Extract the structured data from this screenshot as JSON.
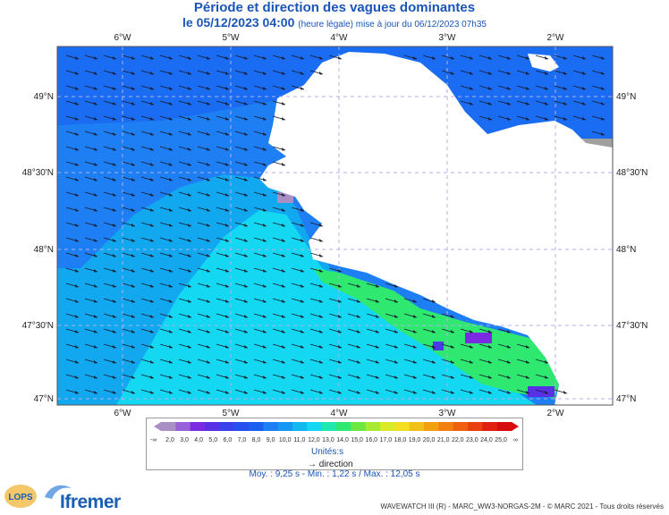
{
  "header": {
    "title": "Période et direction des vagues dominantes",
    "date": "le 05/12/2023 04:00",
    "subtitle": "(heure légale) mise à jour du 06/12/2023 07h35"
  },
  "map": {
    "lon_labels": [
      "6°W",
      "5°W",
      "4°W",
      "3°W",
      "2°W"
    ],
    "lat_labels": [
      "49°N",
      "48°30'N",
      "48°N",
      "47°30'N",
      "47°N"
    ],
    "colors": {
      "land": "#ffffff",
      "deep_blue": "#1a5ff0",
      "blue": "#1e7ff5",
      "light_blue": "#12a8f0",
      "cyan": "#14d8f2",
      "green": "#2ee870",
      "purple": "#7a2ae0",
      "gray": "#a0a0a0"
    }
  },
  "legend": {
    "ticks": [
      "2,0",
      "3,0",
      "4,0",
      "5,0",
      "6,0",
      "7,0",
      "8,0",
      "9,0",
      "10,0",
      "11,0",
      "12,0",
      "13,0",
      "14,0",
      "15,0",
      "16,0",
      "17,0",
      "18,0",
      "19,0",
      "20,0",
      "21,0",
      "22,0",
      "23,0",
      "24,0",
      "25,0"
    ],
    "colors": [
      "#a98fc4",
      "#9a62d8",
      "#7a2ae0",
      "#5a30e6",
      "#3a40ec",
      "#2650f0",
      "#1a5ff0",
      "#1e7ff5",
      "#1598f2",
      "#12b8f0",
      "#14d8f2",
      "#20e8b0",
      "#2ee870",
      "#6ee840",
      "#a8ea30",
      "#d8ea28",
      "#f2e020",
      "#f2c018",
      "#f2a010",
      "#f28010",
      "#ee6010",
      "#e84010",
      "#e02010",
      "#d80c0c"
    ],
    "low_symbol": "-∞",
    "high_symbol": "∞",
    "units": "Unités:s",
    "arrow_label": "direction"
  },
  "stats": {
    "text": "Moy. : 9,25 s   -   Min. : 1,22 s / Max. : 12,05 s"
  },
  "footer": {
    "credits": "WAVEWATCH III (R) - MARC_WW3-NORGAS-2M - © MARC 2021 - Tous droits réservés",
    "logo_ifremer": "Ifremer",
    "logo_lops": "LOPS"
  }
}
